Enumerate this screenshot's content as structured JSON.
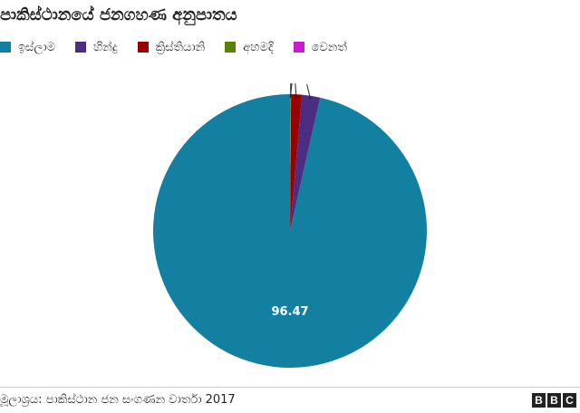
{
  "chart_data": {
    "type": "pie",
    "title": "පාකිස්ථානයේ ජනගහණ අනුපාතය",
    "categories": [
      "ඉස්ලාම",
      "හින්දු",
      "ක්‍රිස්තියානි",
      "අහමදි",
      "වෙනත්"
    ],
    "values": [
      96.47,
      2.14,
      1.27,
      0.09,
      0.03
    ],
    "colors": [
      "#1380a1",
      "#4b2e83",
      "#990000",
      "#588300",
      "#c61ecf"
    ],
    "data_labels": [
      "96.47",
      "",
      "",
      "",
      ""
    ],
    "legend_position": "top-left"
  },
  "footer": {
    "source": "මූලාශ්‍රය: පාකිස්ථාන ජන සංගණන වාර්තා 2017",
    "logo": [
      "B",
      "B",
      "C"
    ]
  }
}
